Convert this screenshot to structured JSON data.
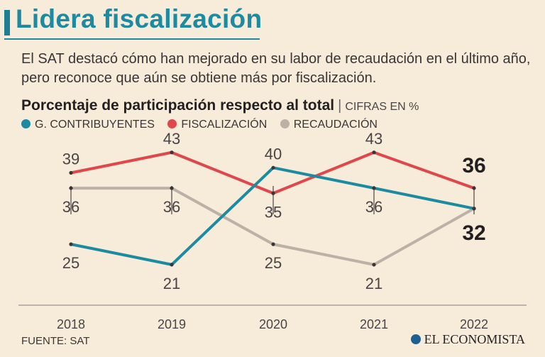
{
  "header": {
    "title": "Lidera fiscalización",
    "subtitle": "El SAT destacó cómo han mejorado en su labor de recaudación en el último año, pero reconoce que aún se obtiene más por fiscalización."
  },
  "chart_heading": {
    "title": "Porcentaje de participación respecto al total",
    "separator": "|",
    "units": "CIFRAS EN %"
  },
  "chart_data": {
    "type": "line",
    "title": "Porcentaje de participación respecto al total",
    "units": "CIFRAS EN %",
    "categories": [
      "2018",
      "2019",
      "2020",
      "2021",
      "2022"
    ],
    "ylim": [
      15,
      47
    ],
    "grid": false,
    "legend_position": "top-left",
    "series": [
      {
        "name": "G. CONTRIBUYENTES",
        "color": "#1c8aa1",
        "values": [
          25,
          21,
          40,
          36,
          32
        ]
      },
      {
        "name": "FISCALIZACIÓN",
        "color": "#e0474c",
        "values": [
          39,
          43,
          35,
          43,
          36
        ]
      },
      {
        "name": "RECAUDACIÓN",
        "color": "#bcb1a7",
        "values": [
          36,
          36,
          25,
          21,
          32
        ]
      }
    ],
    "labels": {
      "G. CONTRIBUYENTES": [
        "25",
        "21",
        "40",
        "36",
        "32"
      ],
      "FISCALIZACIÓN": [
        "39",
        "43",
        "35",
        "43",
        "36"
      ],
      "RECAUDACIÓN": [
        "36",
        "36",
        "25",
        "21",
        ""
      ]
    }
  },
  "footer": {
    "source": "FUENTE: SAT",
    "brand": "EL ECONOMISTA"
  }
}
